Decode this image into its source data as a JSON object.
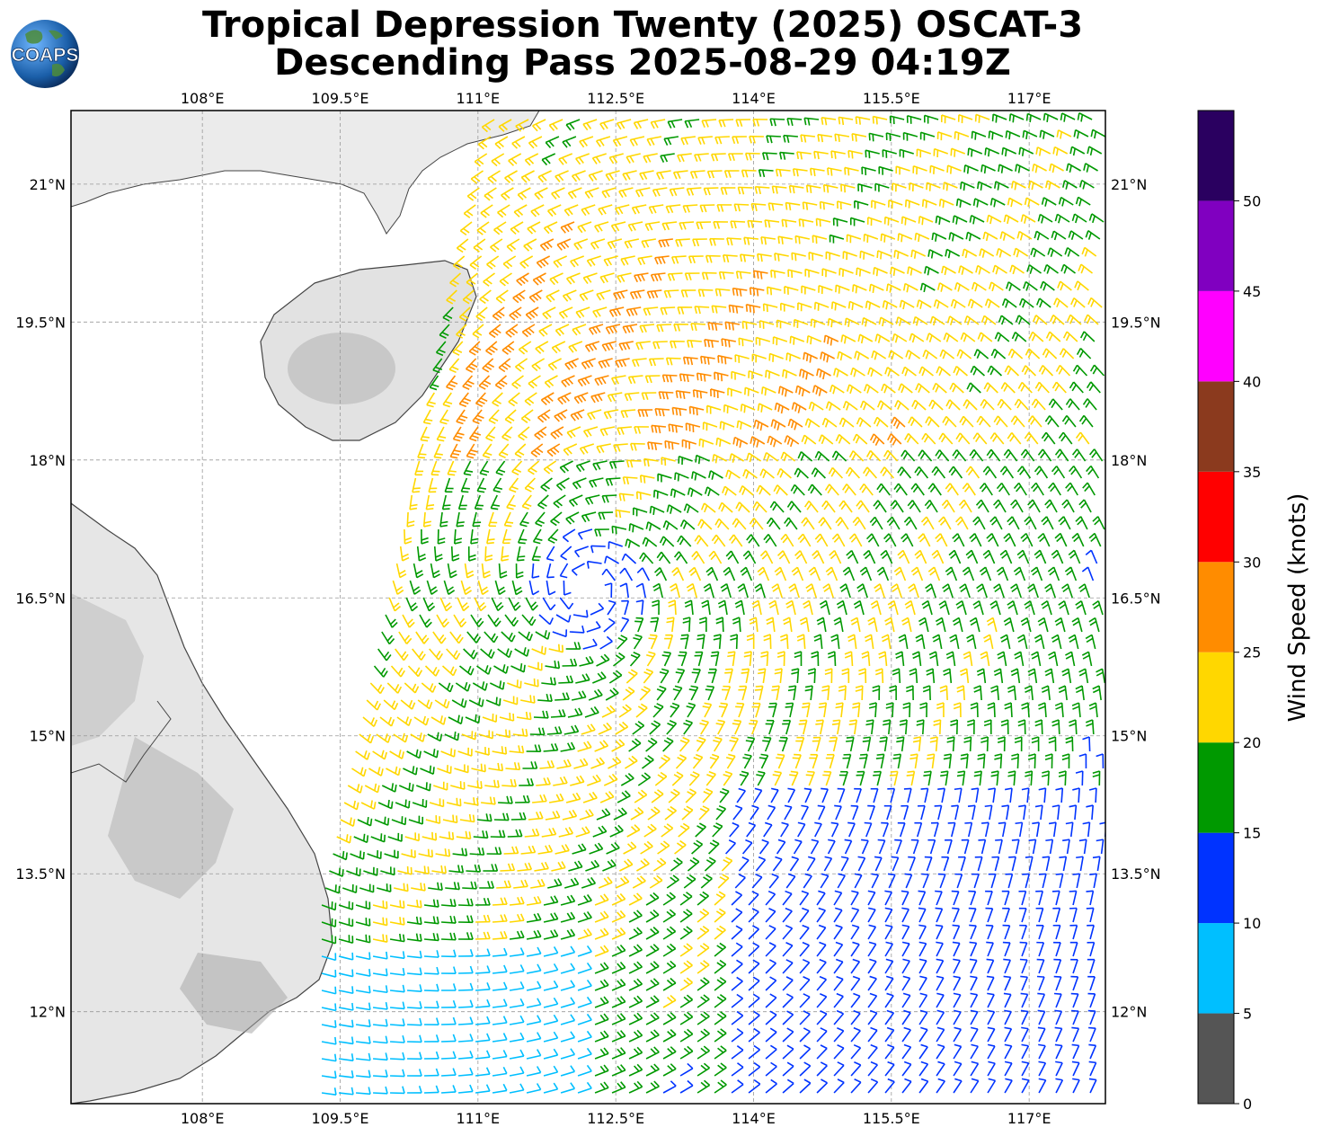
{
  "title": {
    "line1": "Tropical Depression Twenty (2025) OSCAT-3",
    "line2": "Descending Pass 2025-08-29 04:19Z"
  },
  "logo": {
    "text": "COAPS",
    "icon": "globe-logo-icon"
  },
  "map": {
    "lon_range": [
      106.57,
      117.83
    ],
    "lat_range": [
      11.0,
      21.8
    ],
    "lon_ticks": [
      "108°E",
      "109.5°E",
      "111°E",
      "112.5°E",
      "114°E",
      "115.5°E",
      "117°E"
    ],
    "lon_values": [
      108,
      109.5,
      111,
      112.5,
      114,
      115.5,
      117
    ],
    "lat_ticks": [
      "21°N",
      "19.5°N",
      "18°N",
      "16.5°N",
      "15°N",
      "13.5°N",
      "12°N"
    ],
    "lat_values": [
      21,
      19.5,
      18,
      16.5,
      15,
      13.5,
      12
    ],
    "circulation_center": {
      "lon": 112.2,
      "lat": 16.6
    },
    "swath_west_edge_lon": [
      109.3,
      111.2
    ],
    "grid": "dashed"
  },
  "colorbar": {
    "label": "Wind Speed (knots)",
    "ticks": [
      "0",
      "5",
      "10",
      "15",
      "20",
      "25",
      "30",
      "35",
      "40",
      "45",
      "50"
    ],
    "bins": [
      {
        "min": 0,
        "max": 5,
        "color": "#555555"
      },
      {
        "min": 5,
        "max": 10,
        "color": "#00bfff"
      },
      {
        "min": 10,
        "max": 15,
        "color": "#0033ff"
      },
      {
        "min": 15,
        "max": 20,
        "color": "#009900"
      },
      {
        "min": 20,
        "max": 25,
        "color": "#ffd700"
      },
      {
        "min": 25,
        "max": 30,
        "color": "#ff8c00"
      },
      {
        "min": 30,
        "max": 35,
        "color": "#ff0000"
      },
      {
        "min": 35,
        "max": 40,
        "color": "#8b3a1e"
      },
      {
        "min": 40,
        "max": 45,
        "color": "#ff00ff"
      },
      {
        "min": 45,
        "max": 50,
        "color": "#8000c0"
      },
      {
        "min": 50,
        "max": 55,
        "color": "#2a0060"
      }
    ]
  }
}
